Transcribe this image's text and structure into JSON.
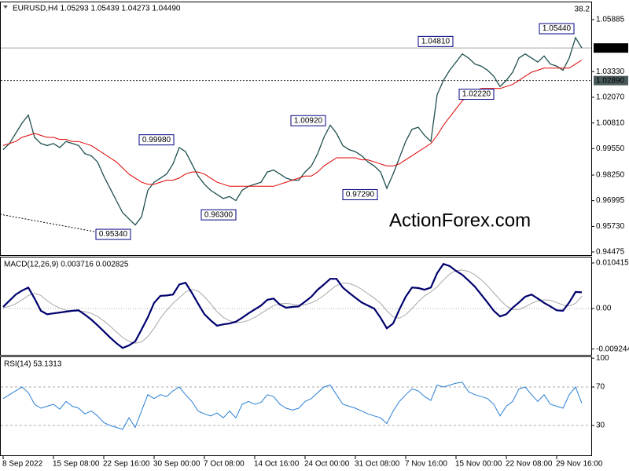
{
  "chart_data": [
    {
      "type": "line",
      "title": "EURUSD,H4 1.05293 1.05439 1.04273 1.04490",
      "corner_label": "38.2",
      "watermark": "ActionForex.com",
      "ylim": [
        0.9432,
        1.0677
      ],
      "yticks": [
        1.05885,
        {
          "value": 1.0333,
          "label": "1.03330"
        },
        {
          "value": 1.0207,
          "label": "1.02070"
        },
        {
          "value": 1.0081,
          "label": "1.00810"
        },
        {
          "value": 0.9955,
          "label": "0.99550"
        },
        {
          "value": 0.9825,
          "label": "0.98250"
        },
        0.96995,
        {
          "value": 0.9573,
          "label": "0.95730"
        },
        0.94475
      ],
      "current_price": {
        "value": 1.0449,
        "label": "1.04490"
      },
      "level": {
        "value": 1.0289,
        "label": "1.02890"
      },
      "annotations": [
        {
          "value": 1.0481,
          "label": "1.04810"
        },
        {
          "value": 1.0544,
          "label": "1.05440"
        },
        {
          "value": 1.0092,
          "label": "1.00920"
        },
        {
          "value": 0.9998,
          "label": "0.99980"
        },
        {
          "value": 1.0222,
          "label": "1.02220"
        },
        {
          "value": 0.9729,
          "label": "0.97290"
        },
        {
          "value": 0.963,
          "label": "0.96300"
        },
        {
          "value": 0.9534,
          "label": "0.95340"
        }
      ],
      "series": [
        {
          "color": "#1f4f4f",
          "values": [
            0.995,
            0.998,
            1.003,
            1.008,
            1.012,
            1.001,
            0.998,
            0.997,
            0.998,
            0.996,
            0.999,
            0.998,
            0.997,
            0.993,
            0.992,
            0.989,
            0.982,
            0.976,
            0.97,
            0.964,
            0.961,
            0.958,
            0.962,
            0.975,
            0.979,
            0.981,
            0.983,
            0.988,
            0.996,
            0.994,
            0.988,
            0.982,
            0.978,
            0.975,
            0.973,
            0.971,
            0.972,
            0.97,
            0.975,
            0.977,
            0.978,
            0.979,
            0.984,
            0.985,
            0.983,
            0.981,
            0.98,
            0.98,
            0.984,
            0.987,
            0.993,
            1.001,
            1.007,
            1.003,
            0.997,
            0.995,
            0.994,
            0.992,
            0.989,
            0.987,
            0.984,
            0.976,
            0.983,
            0.991,
            0.999,
            1.005,
            1.006,
            1.002,
            0.999,
            1.022,
            1.029,
            1.034,
            1.038,
            1.042,
            1.04,
            1.037,
            1.036,
            1.034,
            1.031,
            1.026,
            1.029,
            1.033,
            1.04,
            1.042,
            1.04,
            1.038,
            1.041,
            1.037,
            1.036,
            1.034,
            1.04,
            1.05,
            1.0449
          ]
        },
        {
          "color": "#e00000",
          "values": [
            0.997,
            0.998,
            0.999,
            1.001,
            1.002,
            1.003,
            1.002,
            1.001,
            1.001,
            1.0,
            1.0,
            0.999,
            0.999,
            0.998,
            0.997,
            0.995,
            0.993,
            0.991,
            0.989,
            0.986,
            0.983,
            0.981,
            0.979,
            0.978,
            0.978,
            0.979,
            0.98,
            0.98,
            0.981,
            0.983,
            0.984,
            0.984,
            0.983,
            0.981,
            0.979,
            0.978,
            0.977,
            0.977,
            0.977,
            0.977,
            0.977,
            0.977,
            0.977,
            0.977,
            0.978,
            0.979,
            0.98,
            0.981,
            0.982,
            0.982,
            0.984,
            0.987,
            0.989,
            0.991,
            0.991,
            0.991,
            0.991,
            0.99,
            0.99,
            0.989,
            0.988,
            0.987,
            0.987,
            0.988,
            0.99,
            0.992,
            0.994,
            0.996,
            0.998,
            1.002,
            1.007,
            1.011,
            1.015,
            1.019,
            1.022,
            1.024,
            1.025,
            1.025,
            1.025,
            1.025,
            1.026,
            1.027,
            1.029,
            1.031,
            1.033,
            1.034,
            1.035,
            1.035,
            1.035,
            1.035,
            1.035,
            1.037,
            1.039
          ]
        }
      ]
    },
    {
      "type": "line",
      "title": "MACD(12,26,9) 0.003716 0.002825",
      "ylim": [
        -0.01056,
        0.01167
      ],
      "yticks": [
        0.010415,
        {
          "value": 0,
          "label": "0.00"
        },
        -0.009244
      ],
      "levels": [
        0
      ],
      "series": [
        {
          "color": "#a8a8a8",
          "values": [
            0.0002,
            0.0005,
            0.0011,
            0.002,
            0.003,
            0.0035,
            0.003,
            0.0018,
            0.0008,
            0.0001,
            -0.0004,
            -0.0006,
            -0.0006,
            -0.0007,
            -0.0011,
            -0.0018,
            -0.0028,
            -0.004,
            -0.0053,
            -0.0066,
            -0.0075,
            -0.0079,
            -0.0076,
            -0.0064,
            -0.0045,
            -0.0022,
            -0.0004,
            0.0012,
            0.0025,
            0.0038,
            0.0044,
            0.004,
            0.0027,
            0.0011,
            -0.0007,
            -0.002,
            -0.0028,
            -0.0032,
            -0.0031,
            -0.0027,
            -0.002,
            -0.0011,
            -0.0002,
            0.0007,
            0.0011,
            0.0012,
            0.001,
            0.0008,
            0.0009,
            0.0013,
            0.002,
            0.003,
            0.0042,
            0.0053,
            0.0058,
            0.0057,
            0.0052,
            0.0044,
            0.0034,
            0.0024,
            0.0012,
            -0.0005,
            -0.0019,
            -0.0022,
            -0.0014,
            0.0,
            0.0016,
            0.0029,
            0.0038,
            0.005,
            0.0065,
            0.0079,
            0.0087,
            0.0088,
            0.0085,
            0.0077,
            0.0066,
            0.0052,
            0.0036,
            0.002,
            0.0006,
            -0.0002,
            -0.0002,
            0.0004,
            0.0012,
            0.0018,
            0.002,
            0.0019,
            0.0014,
            0.0008,
            0.0006,
            0.0012,
            0.002825
          ]
        },
        {
          "color": "#00006e",
          "values": [
            0.0004,
            0.0018,
            0.0032,
            0.0041,
            0.0048,
            0.0023,
            -0.0005,
            -0.0013,
            -0.0011,
            -0.0009,
            -0.0007,
            -0.0005,
            -0.0004,
            -0.0014,
            -0.0025,
            -0.0038,
            -0.0052,
            -0.0066,
            -0.0079,
            -0.009,
            -0.0084,
            -0.0075,
            -0.0048,
            -0.002,
            0.0013,
            0.0029,
            0.003,
            0.0032,
            0.0055,
            0.0059,
            0.0036,
            0.0011,
            -0.0013,
            -0.0027,
            -0.0039,
            -0.0036,
            -0.0034,
            -0.003,
            -0.0021,
            -0.0011,
            -0.0002,
            0.0007,
            0.002,
            0.0023,
            0.0009,
            0.0002,
            0.0004,
            0.0005,
            0.0016,
            0.0027,
            0.0043,
            0.0055,
            0.0068,
            0.0068,
            0.0048,
            0.0036,
            0.0025,
            0.0014,
            0.0007,
            0.0,
            -0.0021,
            -0.0045,
            -0.0034,
            -0.0002,
            0.0027,
            0.0048,
            0.0047,
            0.0043,
            0.0048,
            0.0081,
            0.0102,
            0.0097,
            0.0086,
            0.0077,
            0.0064,
            0.005,
            0.0032,
            0.0014,
            -0.0005,
            -0.0018,
            -0.0013,
            0.0002,
            0.0014,
            0.0027,
            0.0032,
            0.0023,
            0.0013,
            0.0005,
            -0.0004,
            -0.0005,
            0.0014,
            0.0038,
            0.003716
          ]
        }
      ]
    },
    {
      "type": "line",
      "title": "RSI(14) 53.1313",
      "ylim": [
        -1,
        101
      ],
      "yticks": [
        100,
        70,
        30
      ],
      "levels": [
        70,
        30
      ],
      "categories": [
        "8 Sep 2022",
        null,
        null,
        null,
        null,
        null,
        null,
        null,
        "15 Sep 08:00",
        null,
        null,
        null,
        null,
        null,
        null,
        null,
        "22 Sep 16:00",
        null,
        null,
        null,
        null,
        null,
        null,
        null,
        "30 Sep 00:00",
        null,
        null,
        null,
        null,
        null,
        null,
        null,
        "7 Oct 08:00",
        null,
        null,
        null,
        null,
        null,
        null,
        null,
        "14 Oct 16:00",
        null,
        null,
        null,
        null,
        null,
        null,
        null,
        "24 Oct 00:00",
        null,
        null,
        null,
        null,
        null,
        null,
        null,
        "31 Oct 08:00",
        null,
        null,
        null,
        null,
        null,
        null,
        null,
        "7 Nov 16:00",
        null,
        null,
        null,
        null,
        null,
        null,
        null,
        "15 Nov 00:00",
        null,
        null,
        null,
        null,
        null,
        null,
        null,
        "22 Nov 08:00",
        null,
        null,
        null,
        null,
        null,
        null,
        null,
        "29 Nov 16:00",
        null,
        null,
        null,
        null
      ],
      "series": [
        {
          "color": "#2a7fd4",
          "values": [
            58,
            62,
            66,
            70,
            64,
            52,
            48,
            50,
            52,
            47,
            55,
            50,
            48,
            42,
            45,
            40,
            33,
            30,
            28,
            26,
            38,
            28,
            45,
            62,
            58,
            62,
            60,
            66,
            70,
            62,
            55,
            45,
            42,
            40,
            43,
            38,
            45,
            38,
            52,
            55,
            52,
            54,
            62,
            60,
            52,
            48,
            46,
            48,
            55,
            58,
            64,
            70,
            72,
            62,
            52,
            50,
            48,
            45,
            42,
            40,
            38,
            32,
            45,
            55,
            62,
            68,
            66,
            60,
            56,
            72,
            70,
            72,
            74,
            75,
            65,
            62,
            60,
            58,
            52,
            40,
            50,
            55,
            68,
            70,
            62,
            55,
            62,
            52,
            50,
            48,
            62,
            70,
            53.1313
          ]
        }
      ]
    }
  ]
}
